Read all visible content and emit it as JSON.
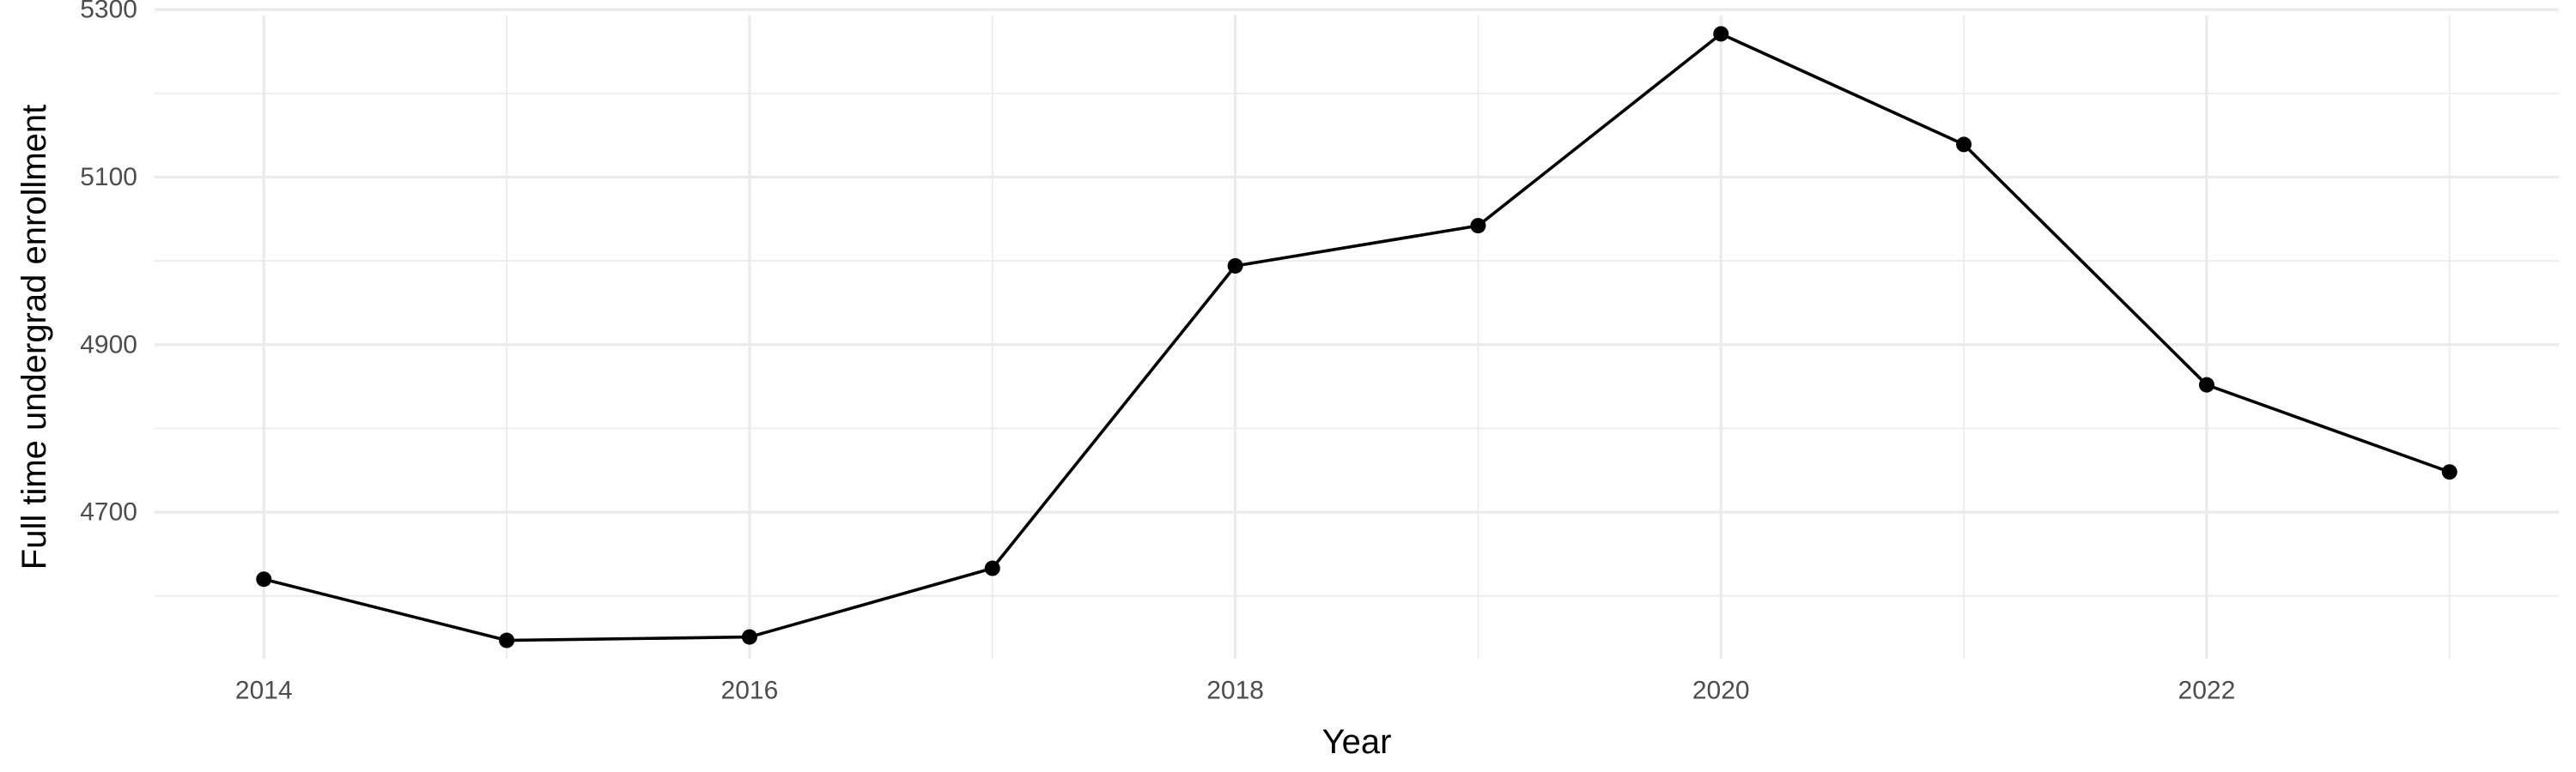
{
  "chart_data": {
    "type": "line",
    "title": "",
    "xlabel": "Year",
    "ylabel": "Full time undergrad enrollment",
    "x": [
      2014,
      2015,
      2016,
      2017,
      2018,
      2019,
      2020,
      2021,
      2022,
      2023
    ],
    "series": [
      {
        "values": [
          4620,
          4547,
          4551,
          4633,
          4994,
          5042,
          5271,
          5139,
          4852,
          4748
        ]
      }
    ],
    "xlim": [
      2013.55,
      2023.45
    ],
    "ylim": [
      4525,
      5293
    ],
    "x_ticks": [
      2014,
      2016,
      2018,
      2020,
      2022
    ],
    "x_tick_labels": [
      "2014",
      "2016",
      "2018",
      "2020",
      "2022"
    ],
    "x_minor_ticks": [
      2015,
      2017,
      2019,
      2021,
      2023
    ],
    "y_ticks": [
      4700,
      4900,
      5100,
      5300
    ],
    "y_tick_labels": [
      "4700",
      "4900",
      "5100",
      "5300"
    ],
    "y_minor_ticks": [
      4600,
      4800,
      5000,
      5200
    ],
    "grid": true,
    "legend": "none",
    "colors": {
      "line": "#000000",
      "point": "#000000",
      "grid": "#ebebeb",
      "background": "#ffffff"
    }
  }
}
